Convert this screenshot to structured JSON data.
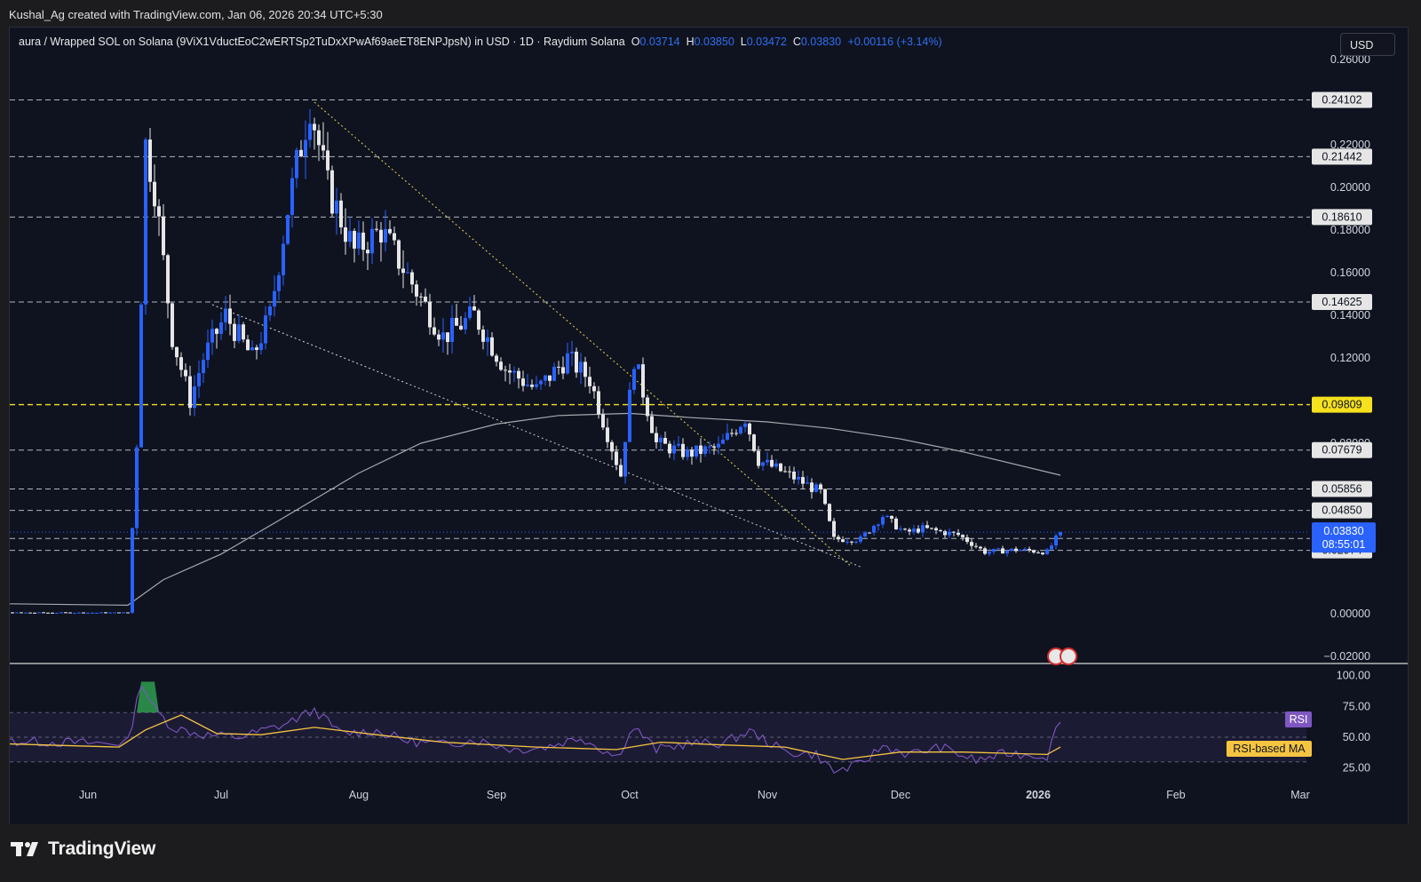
{
  "header": {
    "credit": "Kushal_Ag created with TradingView.com, Jan 06, 2026 20:34 UTC+5:30"
  },
  "legend": {
    "title": "aura / Wrapped SOL on Solana (9ViX1VductEoC2wERTSp2TuDxXPwAf69aeET8ENPJpsN) in USD · 1D · Raydium Solana",
    "o_label": "O",
    "o_value": "0.03714",
    "h_label": "H",
    "h_value": "0.03850",
    "l_label": "L",
    "l_value": "0.03472",
    "c_label": "C",
    "c_value": "0.03830",
    "change": "+0.00116 (+3.14%)"
  },
  "currency_button": "USD",
  "footer": {
    "brand": "TradingView"
  },
  "colors": {
    "up": "#2962ff",
    "down": "#e6e6e6",
    "ma": "#a6a8ad",
    "rsi": "#7e57c2",
    "rsi_ma": "#f5c542",
    "highlight": "#f5e11e",
    "background": "#0f1320"
  },
  "chart_data": {
    "type": "candlestick",
    "y_ticks": [
      "0.26000",
      "0.22000",
      "0.20000",
      "0.18000",
      "0.16000",
      "0.14000",
      "0.12000",
      "0.08000",
      "0.00000",
      "−0.02000"
    ],
    "ylim": [
      -0.02,
      0.26
    ],
    "x_ticks": [
      "Jun",
      "Jul",
      "Aug",
      "Sep",
      "Oct",
      "Nov",
      "Dec",
      "2026",
      "Feb",
      "Mar"
    ],
    "last_price": "0.03830",
    "countdown": "08:55:01",
    "levels": [
      {
        "value": "0.24102",
        "style": "dashed"
      },
      {
        "value": "0.21442",
        "style": "dashed"
      },
      {
        "value": "0.18610",
        "style": "dashed"
      },
      {
        "value": "0.14625",
        "style": "dashed"
      },
      {
        "value": "0.09809",
        "style": "highlight"
      },
      {
        "value": "0.07679",
        "style": "dashed"
      },
      {
        "value": "0.05856",
        "style": "dashed"
      },
      {
        "value": "0.04850",
        "style": "dashed"
      },
      {
        "value": "0.03530",
        "style": "dashed"
      },
      {
        "value": "0.02974",
        "style": "dashed"
      }
    ],
    "trendlines": [
      {
        "from": [
          "2025-07-22",
          0.24
        ],
        "to": [
          "2025-11-20",
          0.022
        ],
        "style": "dotted yellow"
      },
      {
        "from": [
          "2025-06-29",
          0.145
        ],
        "to": [
          "2025-11-22",
          0.022
        ],
        "style": "dotted white"
      }
    ],
    "price_path": [
      [
        "2025-05-01",
        0.0005
      ],
      [
        "2025-06-10",
        0.0005
      ],
      [
        "2025-06-12",
        0.08
      ],
      [
        "2025-06-14",
        0.22
      ],
      [
        "2025-06-16",
        0.2
      ],
      [
        "2025-06-20",
        0.13
      ],
      [
        "2025-06-24",
        0.1
      ],
      [
        "2025-06-27",
        0.12
      ],
      [
        "2025-07-02",
        0.14
      ],
      [
        "2025-07-08",
        0.12
      ],
      [
        "2025-07-12",
        0.14
      ],
      [
        "2025-07-16",
        0.19
      ],
      [
        "2025-07-21",
        0.24
      ],
      [
        "2025-07-25",
        0.2
      ],
      [
        "2025-07-31",
        0.17
      ],
      [
        "2025-08-06",
        0.18
      ],
      [
        "2025-08-13",
        0.155
      ],
      [
        "2025-08-20",
        0.13
      ],
      [
        "2025-08-27",
        0.14
      ],
      [
        "2025-09-03",
        0.115
      ],
      [
        "2025-09-10",
        0.105
      ],
      [
        "2025-09-17",
        0.12
      ],
      [
        "2025-09-22",
        0.11
      ],
      [
        "2025-09-29",
        0.065
      ],
      [
        "2025-10-02",
        0.12
      ],
      [
        "2025-10-07",
        0.08
      ],
      [
        "2025-10-14",
        0.075
      ],
      [
        "2025-10-21",
        0.078
      ],
      [
        "2025-10-27",
        0.092
      ],
      [
        "2025-10-30",
        0.072
      ],
      [
        "2025-11-06",
        0.065
      ],
      [
        "2025-11-13",
        0.057
      ],
      [
        "2025-11-16",
        0.035
      ],
      [
        "2025-11-22",
        0.035
      ],
      [
        "2025-11-27",
        0.046
      ],
      [
        "2025-12-02",
        0.038
      ],
      [
        "2025-12-06",
        0.04
      ],
      [
        "2025-12-14",
        0.037
      ],
      [
        "2025-12-20",
        0.029
      ],
      [
        "2025-12-27",
        0.03
      ],
      [
        "2026-01-03",
        0.029
      ],
      [
        "2026-01-06",
        0.0383
      ]
    ],
    "ma_path": [
      [
        "2025-05-01",
        0.005
      ],
      [
        "2025-06-10",
        0.004
      ],
      [
        "2025-06-18",
        0.016
      ],
      [
        "2025-07-01",
        0.028
      ],
      [
        "2025-07-15",
        0.045
      ],
      [
        "2025-08-01",
        0.066
      ],
      [
        "2025-08-15",
        0.08
      ],
      [
        "2025-09-01",
        0.089
      ],
      [
        "2025-09-15",
        0.093
      ],
      [
        "2025-10-01",
        0.094
      ],
      [
        "2025-10-15",
        0.092
      ],
      [
        "2025-11-01",
        0.09
      ],
      [
        "2025-11-15",
        0.087
      ],
      [
        "2025-12-01",
        0.082
      ],
      [
        "2025-12-15",
        0.076
      ],
      [
        "2026-01-06",
        0.065
      ]
    ],
    "rsi": {
      "y_ticks": [
        "100.00",
        "75.00",
        "50.00",
        "25.00"
      ],
      "ylim": [
        12,
        104
      ],
      "series_label": "RSI",
      "ma_label": "RSI-based MA",
      "rsi_path": [
        [
          "2025-05-01",
          48
        ],
        [
          "2025-06-05",
          45
        ],
        [
          "2025-06-10",
          46
        ],
        [
          "2025-06-13",
          95
        ],
        [
          "2025-06-16",
          73
        ],
        [
          "2025-06-20",
          58
        ],
        [
          "2025-06-27",
          52
        ],
        [
          "2025-07-05",
          50
        ],
        [
          "2025-07-15",
          60
        ],
        [
          "2025-07-22",
          72
        ],
        [
          "2025-07-28",
          53
        ],
        [
          "2025-08-05",
          55
        ],
        [
          "2025-08-12",
          47
        ],
        [
          "2025-08-20",
          44
        ],
        [
          "2025-08-27",
          48
        ],
        [
          "2025-09-05",
          40
        ],
        [
          "2025-09-12",
          42
        ],
        [
          "2025-09-20",
          50
        ],
        [
          "2025-09-28",
          34
        ],
        [
          "2025-10-02",
          58
        ],
        [
          "2025-10-07",
          40
        ],
        [
          "2025-10-14",
          45
        ],
        [
          "2025-10-22",
          45
        ],
        [
          "2025-10-28",
          55
        ],
        [
          "2025-11-05",
          38
        ],
        [
          "2025-11-12",
          36
        ],
        [
          "2025-11-16",
          22
        ],
        [
          "2025-11-22",
          28
        ],
        [
          "2025-11-27",
          43
        ],
        [
          "2025-12-03",
          36
        ],
        [
          "2025-12-10",
          42
        ],
        [
          "2025-12-18",
          31
        ],
        [
          "2025-12-25",
          37
        ],
        [
          "2026-01-03",
          35
        ],
        [
          "2026-01-06",
          66
        ]
      ],
      "ma_path": [
        [
          "2025-05-01",
          46
        ],
        [
          "2025-06-08",
          42
        ],
        [
          "2025-06-14",
          56
        ],
        [
          "2025-06-22",
          68
        ],
        [
          "2025-06-30",
          53
        ],
        [
          "2025-07-10",
          52
        ],
        [
          "2025-07-22",
          58
        ],
        [
          "2025-08-05",
          52
        ],
        [
          "2025-08-20",
          46
        ],
        [
          "2025-09-10",
          42
        ],
        [
          "2025-09-28",
          40
        ],
        [
          "2025-10-08",
          46
        ],
        [
          "2025-10-20",
          44
        ],
        [
          "2025-11-05",
          42
        ],
        [
          "2025-11-18",
          32
        ],
        [
          "2025-12-01",
          38
        ],
        [
          "2025-12-15",
          38
        ],
        [
          "2026-01-03",
          36
        ],
        [
          "2026-01-06",
          42
        ]
      ]
    }
  }
}
